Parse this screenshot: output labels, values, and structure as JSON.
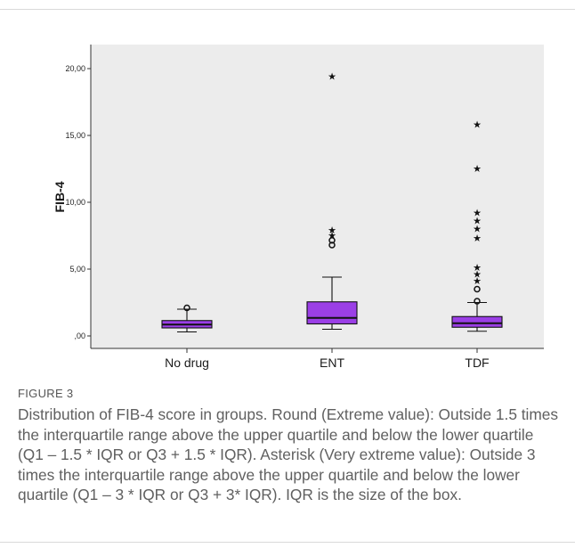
{
  "chart_data": {
    "type": "boxplot",
    "ylabel": "FIB-4",
    "xlabel": "",
    "ylim": [
      -0.8,
      20.8
    ],
    "yticks": [
      0,
      5,
      10,
      15,
      20
    ],
    "ytick_labels": [
      ",00",
      "5,00",
      "10,00",
      "15,00",
      "20,00"
    ],
    "categories": [
      "No drug",
      "ENT",
      "TDF"
    ],
    "box_color": "#9b3fe6",
    "plot_background": "#ececec",
    "grid": false,
    "boxes": [
      {
        "category": "No drug",
        "whisker_low": 0.3,
        "q1": 0.6,
        "median": 0.85,
        "q3": 1.15,
        "whisker_high": 2.0,
        "outliers": [
          2.1
        ],
        "extremes": []
      },
      {
        "category": "ENT",
        "whisker_low": 0.5,
        "q1": 0.9,
        "median": 1.35,
        "q3": 2.55,
        "whisker_high": 4.4,
        "outliers": [
          6.8,
          7.15
        ],
        "extremes": [
          7.5,
          7.9,
          19.4
        ]
      },
      {
        "category": "TDF",
        "whisker_low": 0.35,
        "q1": 0.65,
        "median": 0.95,
        "q3": 1.45,
        "whisker_high": 2.5,
        "outliers": [
          2.6,
          3.5
        ],
        "extremes": [
          4.1,
          4.6,
          5.1,
          7.3,
          8.0,
          8.6,
          9.2,
          12.5,
          15.8
        ]
      }
    ]
  },
  "caption": {
    "label": "FIGURE 3",
    "text": "Distribution of FIB-4 score in groups. Round (Extreme value): Outside 1.5 times the interquartile range above the upper quartile and below the lower quartile (Q1 – 1.5 * IQR or Q3 + 1.5 * IQR). Asterisk (Very extreme value): Outside 3 times the interquartile range above the upper quartile and below the lower quartile (Q1 – 3 * IQR or Q3 + 3* IQR). IQR is the size of the box."
  }
}
